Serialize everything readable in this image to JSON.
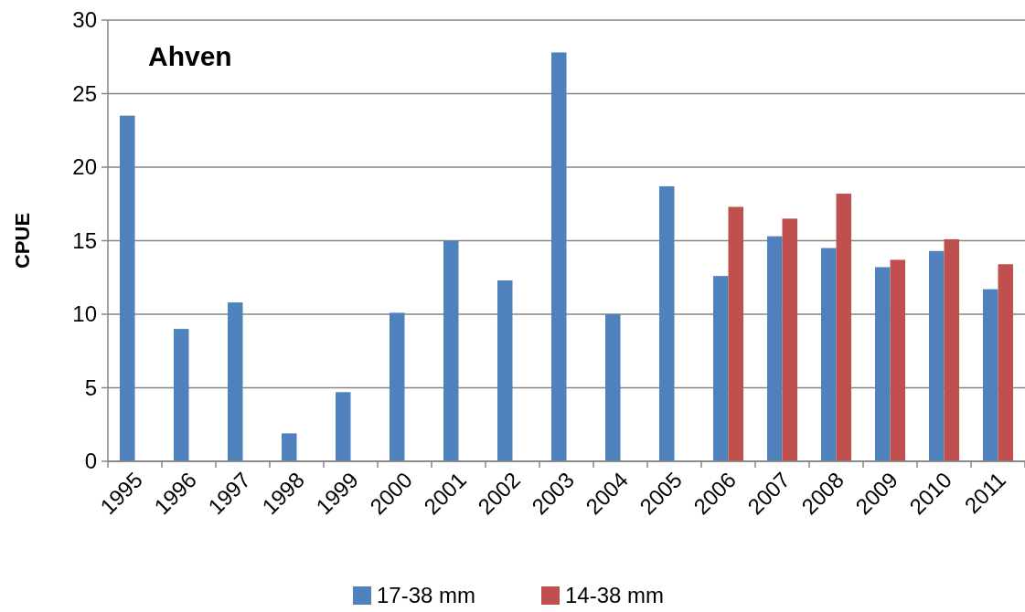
{
  "chart_data": {
    "type": "bar",
    "title": "Ahven",
    "ylabel": "CPUE",
    "categories": [
      "1995",
      "1996",
      "1997",
      "1998",
      "1999",
      "2000",
      "2001",
      "2002",
      "2003",
      "2004",
      "2005",
      "2006",
      "2007",
      "2008",
      "2009",
      "2010",
      "2011"
    ],
    "series": [
      {
        "name": "17-38 mm",
        "color": "#4f81bd",
        "values": [
          23.5,
          9.0,
          10.8,
          1.9,
          4.7,
          10.1,
          15.0,
          12.3,
          27.8,
          10.0,
          18.7,
          12.6,
          15.3,
          14.5,
          13.2,
          14.3,
          11.7
        ]
      },
      {
        "name": "14-38 mm",
        "color": "#c0504d",
        "values": [
          null,
          null,
          null,
          null,
          null,
          null,
          null,
          null,
          null,
          null,
          null,
          17.3,
          16.5,
          18.2,
          13.7,
          15.1,
          13.4
        ]
      }
    ],
    "ylim": [
      0,
      30
    ],
    "yticks": [
      0,
      5,
      10,
      15,
      20,
      25,
      30
    ],
    "grid": "y",
    "legend": "bottom"
  }
}
